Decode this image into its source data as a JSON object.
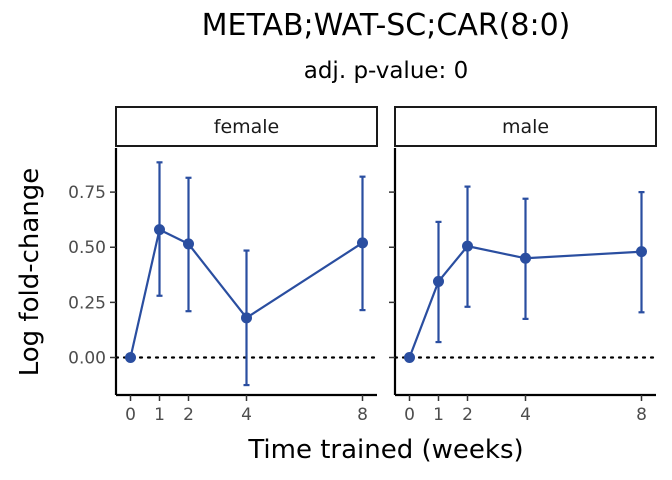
{
  "chart_data": {
    "type": "line",
    "title": "METAB;WAT-SC;CAR(8:0)",
    "subtitle": "adj. p-value: 0",
    "xlabel": "Time trained (weeks)",
    "ylabel": "Log fold-change",
    "x_ticks": [
      0,
      1,
      2,
      4,
      8
    ],
    "y_ticks": [
      "0.00",
      "0.25",
      "0.50",
      "0.75"
    ],
    "xlim": [
      -0.5,
      8.5
    ],
    "ylim": [
      -0.17,
      0.95
    ],
    "reference_line": 0,
    "line_color": "#2a4ea0",
    "facets": [
      {
        "label": "female",
        "x": [
          0,
          1,
          2,
          4,
          8
        ],
        "y": [
          0.0,
          0.58,
          0.515,
          0.18,
          0.52
        ],
        "y_lower": [
          null,
          0.28,
          0.21,
          -0.125,
          0.215
        ],
        "y_upper": [
          null,
          0.885,
          0.815,
          0.485,
          0.82
        ]
      },
      {
        "label": "male",
        "x": [
          0,
          1,
          2,
          4,
          8
        ],
        "y": [
          0.0,
          0.345,
          0.505,
          0.45,
          0.48
        ],
        "y_lower": [
          null,
          0.07,
          0.23,
          0.175,
          0.205
        ],
        "y_upper": [
          null,
          0.615,
          0.775,
          0.72,
          0.75
        ]
      }
    ]
  }
}
